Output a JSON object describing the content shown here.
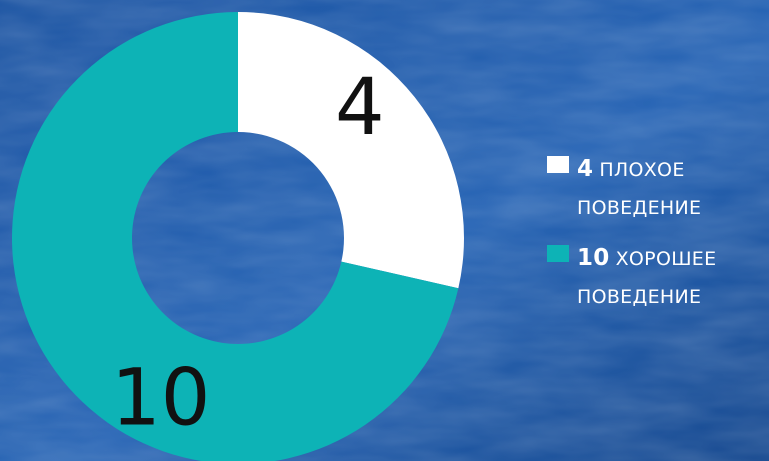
{
  "colors": {
    "background": "#1d55a3",
    "background_dark": "#184a90",
    "background_light": "#2865b5",
    "label_text": "#111111",
    "legend_text": "#ffffff"
  },
  "chart_data": {
    "type": "pie",
    "donut": true,
    "slices": [
      {
        "value": 4,
        "label": "4",
        "legend_value": "4",
        "legend_text": "ПЛОХОЕ ПОВЕДЕНИЕ",
        "color": "#ffffff"
      },
      {
        "value": 10,
        "label": "10",
        "legend_value": "10",
        "legend_text": "ХОРОШЕЕ ПОВЕДЕНИЕ",
        "color": "#0db3b6"
      }
    ],
    "start": "top",
    "direction": "clockwise",
    "legend_position": "right"
  }
}
